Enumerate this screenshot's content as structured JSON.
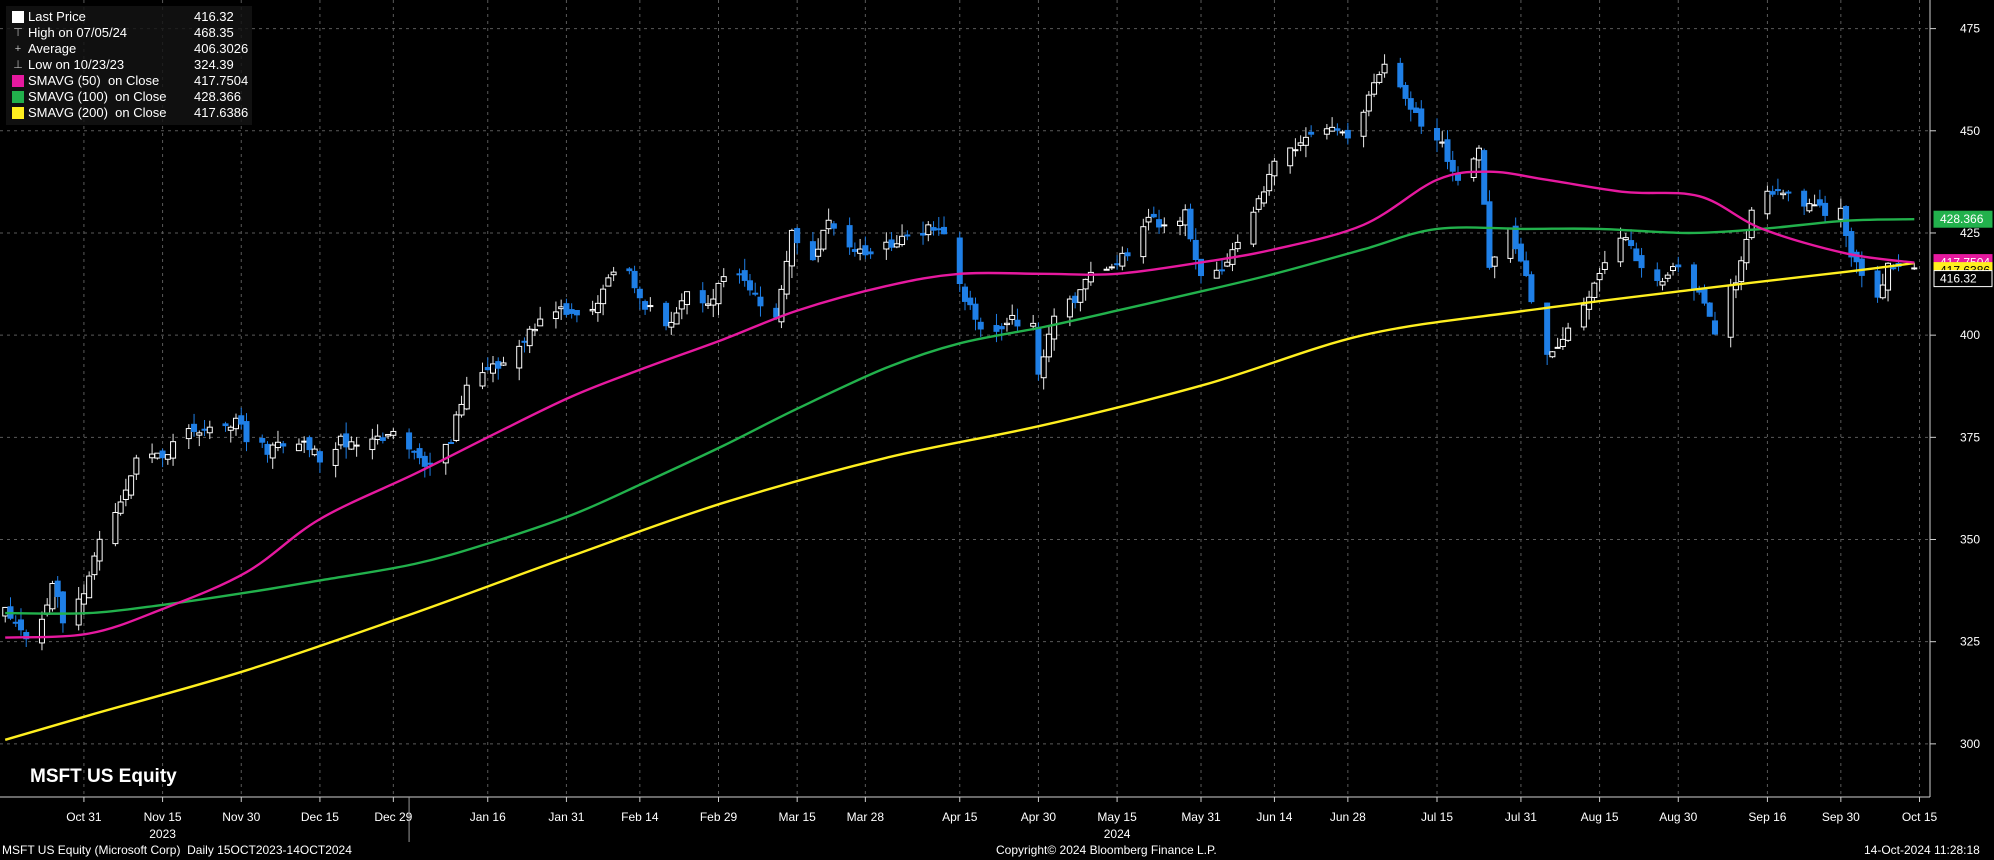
{
  "legend": {
    "items": [
      {
        "name": "Last Price",
        "value": "416.32",
        "marker": "square",
        "color": "#ffffff"
      },
      {
        "name": "High on 07/05/24",
        "value": "468.35",
        "marker": "tee-up"
      },
      {
        "name": "Average",
        "value": "406.3026",
        "marker": "plus"
      },
      {
        "name": "Low on 10/23/23",
        "value": "324.39",
        "marker": "tee-down"
      },
      {
        "name": "SMAVG (50)  on Close",
        "value": "417.7504",
        "marker": "square",
        "color": "#e6199f"
      },
      {
        "name": "SMAVG (100)  on Close",
        "value": "428.366",
        "marker": "square",
        "color": "#22b14c"
      },
      {
        "name": "SMAVG (200)  on Close",
        "value": "417.6386",
        "marker": "square",
        "color": "#ffef1f"
      }
    ]
  },
  "chart_label": "MSFT US Equity",
  "footer": {
    "left": "MSFT US Equity (Microsoft Corp)  Daily 15OCT2023-14OCT2024",
    "center": "Copyright© 2024 Bloomberg Finance L.P.",
    "right": "14-Oct-2024 11:28:18"
  },
  "colors": {
    "background": "#000000",
    "grid": "#5a5a5a",
    "up_candle": "#ffffff",
    "down_candle": "#1f7fe6",
    "sma50": "#e6199f",
    "sma100": "#22b14c",
    "sma200": "#ffef1f"
  },
  "chart_data": {
    "type": "candlestick",
    "ylim": [
      287,
      482
    ],
    "yticks": [
      300,
      325,
      350,
      375,
      400,
      425,
      450,
      475
    ],
    "xlim": [
      "2023-10-15",
      "2024-10-17"
    ],
    "xticks": [
      {
        "date": "2023-10-31",
        "label": "Oct 31"
      },
      {
        "date": "2023-11-15",
        "label": "Nov 15"
      },
      {
        "date": "2023-11-30",
        "label": "Nov 30"
      },
      {
        "date": "2023-12-15",
        "label": "Dec 15"
      },
      {
        "date": "2023-12-29",
        "label": "Dec 29"
      },
      {
        "date": "2024-01-16",
        "label": "Jan 16"
      },
      {
        "date": "2024-01-31",
        "label": "Jan 31"
      },
      {
        "date": "2024-02-14",
        "label": "Feb 14"
      },
      {
        "date": "2024-02-29",
        "label": "Feb 29"
      },
      {
        "date": "2024-03-15",
        "label": "Mar 15"
      },
      {
        "date": "2024-03-28",
        "label": "Mar 28"
      },
      {
        "date": "2024-04-15",
        "label": "Apr 15"
      },
      {
        "date": "2024-04-30",
        "label": "Apr 30"
      },
      {
        "date": "2024-05-15",
        "label": "May 15"
      },
      {
        "date": "2024-05-31",
        "label": "May 31"
      },
      {
        "date": "2024-06-14",
        "label": "Jun 14"
      },
      {
        "date": "2024-06-28",
        "label": "Jun 28"
      },
      {
        "date": "2024-07-15",
        "label": "Jul 15"
      },
      {
        "date": "2024-07-31",
        "label": "Jul 31"
      },
      {
        "date": "2024-08-15",
        "label": "Aug 15"
      },
      {
        "date": "2024-08-30",
        "label": "Aug 30"
      },
      {
        "date": "2024-09-16",
        "label": "Sep 16"
      },
      {
        "date": "2024-09-30",
        "label": "Sep 30"
      },
      {
        "date": "2024-10-15",
        "label": "Oct 15"
      }
    ],
    "year_labels": [
      {
        "date": "2023-11-15",
        "label": "2023"
      },
      {
        "date": "2024-05-15",
        "label": "2024"
      }
    ],
    "price_path": [
      [
        "2023-10-16",
        332
      ],
      [
        "2023-10-20",
        326
      ],
      [
        "2023-10-23",
        329
      ],
      [
        "2023-10-25",
        340
      ],
      [
        "2023-10-27",
        330
      ],
      [
        "2023-10-31",
        338
      ],
      [
        "2023-11-03",
        350
      ],
      [
        "2023-11-07",
        359
      ],
      [
        "2023-11-10",
        369
      ],
      [
        "2023-11-15",
        370
      ],
      [
        "2023-11-20",
        377
      ],
      [
        "2023-11-24",
        378
      ],
      [
        "2023-11-29",
        379
      ],
      [
        "2023-12-01",
        375
      ],
      [
        "2023-12-05",
        372
      ],
      [
        "2023-12-08",
        374
      ],
      [
        "2023-12-12",
        374
      ],
      [
        "2023-12-15",
        370
      ],
      [
        "2023-12-19",
        374
      ],
      [
        "2023-12-22",
        374
      ],
      [
        "2023-12-27",
        375
      ],
      [
        "2023-12-29",
        376
      ],
      [
        "2024-01-03",
        370
      ],
      [
        "2024-01-05",
        367
      ],
      [
        "2024-01-09",
        375
      ],
      [
        "2024-01-12",
        388
      ],
      [
        "2024-01-18",
        393
      ],
      [
        "2024-01-22",
        397
      ],
      [
        "2024-01-26",
        404
      ],
      [
        "2024-01-30",
        408
      ],
      [
        "2024-02-01",
        404
      ],
      [
        "2024-02-05",
        405
      ],
      [
        "2024-02-08",
        415
      ],
      [
        "2024-02-12",
        415
      ],
      [
        "2024-02-14",
        409
      ],
      [
        "2024-02-20",
        402
      ],
      [
        "2024-02-23",
        410
      ],
      [
        "2024-02-27",
        407
      ],
      [
        "2024-02-29",
        413
      ],
      [
        "2024-03-04",
        415
      ],
      [
        "2024-03-07",
        409
      ],
      [
        "2024-03-11",
        405
      ],
      [
        "2024-03-14",
        425
      ],
      [
        "2024-03-18",
        418
      ],
      [
        "2024-03-21",
        429
      ],
      [
        "2024-03-25",
        422
      ],
      [
        "2024-03-28",
        421
      ],
      [
        "2024-04-02",
        422
      ],
      [
        "2024-04-05",
        425
      ],
      [
        "2024-04-09",
        426
      ],
      [
        "2024-04-11",
        427
      ],
      [
        "2024-04-15",
        413
      ],
      [
        "2024-04-18",
        403
      ],
      [
        "2024-04-22",
        400
      ],
      [
        "2024-04-25",
        404
      ],
      [
        "2024-04-29",
        402
      ],
      [
        "2024-04-30",
        389
      ],
      [
        "2024-05-03",
        406
      ],
      [
        "2024-05-07",
        409
      ],
      [
        "2024-05-10",
        415
      ],
      [
        "2024-05-14",
        416
      ],
      [
        "2024-05-17",
        420
      ],
      [
        "2024-05-21",
        430
      ],
      [
        "2024-05-23",
        426
      ],
      [
        "2024-05-28",
        430
      ],
      [
        "2024-05-31",
        415
      ],
      [
        "2024-06-04",
        416
      ],
      [
        "2024-06-07",
        423
      ],
      [
        "2024-06-11",
        432
      ],
      [
        "2024-06-14",
        443
      ],
      [
        "2024-06-18",
        446
      ],
      [
        "2024-06-21",
        449
      ],
      [
        "2024-06-25",
        451
      ],
      [
        "2024-06-28",
        447
      ],
      [
        "2024-07-02",
        459
      ],
      [
        "2024-07-05",
        467
      ],
      [
        "2024-07-09",
        459
      ],
      [
        "2024-07-11",
        453
      ],
      [
        "2024-07-15",
        449
      ],
      [
        "2024-07-17",
        443
      ],
      [
        "2024-07-19",
        437
      ],
      [
        "2024-07-23",
        445
      ],
      [
        "2024-07-25",
        418
      ],
      [
        "2024-07-29",
        426
      ],
      [
        "2024-07-31",
        418
      ],
      [
        "2024-08-05",
        395
      ],
      [
        "2024-08-07",
        398
      ],
      [
        "2024-08-12",
        406
      ],
      [
        "2024-08-16",
        418
      ],
      [
        "2024-08-20",
        424
      ],
      [
        "2024-08-23",
        416
      ],
      [
        "2024-08-27",
        413
      ],
      [
        "2024-08-30",
        417
      ],
      [
        "2024-09-04",
        408
      ],
      [
        "2024-09-06",
        401
      ],
      [
        "2024-09-10",
        414
      ],
      [
        "2024-09-13",
        430
      ],
      [
        "2024-09-17",
        435
      ],
      [
        "2024-09-19",
        436
      ],
      [
        "2024-09-23",
        433
      ],
      [
        "2024-09-26",
        431
      ],
      [
        "2024-09-30",
        430
      ],
      [
        "2024-10-02",
        420
      ],
      [
        "2024-10-04",
        416
      ],
      [
        "2024-10-07",
        409
      ],
      [
        "2024-10-09",
        417
      ],
      [
        "2024-10-11",
        416
      ],
      [
        "2024-10-14",
        416.32
      ]
    ],
    "sma50": [
      [
        "2023-10-16",
        326
      ],
      [
        "2023-11-01",
        327
      ],
      [
        "2023-11-15",
        333
      ],
      [
        "2023-12-01",
        342
      ],
      [
        "2023-12-15",
        355
      ],
      [
        "2024-01-02",
        366
      ],
      [
        "2024-01-16",
        375
      ],
      [
        "2024-02-01",
        385
      ],
      [
        "2024-02-15",
        392
      ],
      [
        "2024-03-01",
        399
      ],
      [
        "2024-03-15",
        406
      ],
      [
        "2024-04-01",
        412
      ],
      [
        "2024-04-15",
        415
      ],
      [
        "2024-05-01",
        415
      ],
      [
        "2024-05-15",
        415
      ],
      [
        "2024-06-01",
        418
      ],
      [
        "2024-06-14",
        421
      ],
      [
        "2024-07-01",
        427
      ],
      [
        "2024-07-15",
        438
      ],
      [
        "2024-07-25",
        440
      ],
      [
        "2024-08-05",
        438
      ],
      [
        "2024-08-20",
        435
      ],
      [
        "2024-09-03",
        434
      ],
      [
        "2024-09-15",
        426
      ],
      [
        "2024-10-01",
        420
      ],
      [
        "2024-10-14",
        417.75
      ]
    ],
    "sma100": [
      [
        "2023-10-16",
        332
      ],
      [
        "2023-11-01",
        332
      ],
      [
        "2023-11-15",
        334
      ],
      [
        "2023-12-01",
        337
      ],
      [
        "2023-12-15",
        340
      ],
      [
        "2024-01-02",
        344
      ],
      [
        "2024-01-16",
        349
      ],
      [
        "2024-02-01",
        356
      ],
      [
        "2024-02-15",
        364
      ],
      [
        "2024-03-01",
        373
      ],
      [
        "2024-03-15",
        382
      ],
      [
        "2024-04-01",
        392
      ],
      [
        "2024-04-15",
        398
      ],
      [
        "2024-05-01",
        402
      ],
      [
        "2024-05-15",
        406
      ],
      [
        "2024-06-01",
        411
      ],
      [
        "2024-06-14",
        415
      ],
      [
        "2024-07-01",
        421
      ],
      [
        "2024-07-15",
        426
      ],
      [
        "2024-08-01",
        426
      ],
      [
        "2024-08-15",
        426
      ],
      [
        "2024-09-01",
        425
      ],
      [
        "2024-09-15",
        426
      ],
      [
        "2024-10-01",
        428
      ],
      [
        "2024-10-14",
        428.37
      ]
    ],
    "sma200": [
      [
        "2023-10-16",
        301
      ],
      [
        "2023-11-01",
        307
      ],
      [
        "2023-12-01",
        318
      ],
      [
        "2024-01-02",
        332
      ],
      [
        "2024-02-01",
        346
      ],
      [
        "2024-03-01",
        359
      ],
      [
        "2024-04-01",
        370
      ],
      [
        "2024-05-01",
        378
      ],
      [
        "2024-06-01",
        388
      ],
      [
        "2024-07-01",
        400
      ],
      [
        "2024-08-01",
        406
      ],
      [
        "2024-09-01",
        411
      ],
      [
        "2024-10-01",
        415.5
      ],
      [
        "2024-10-14",
        417.64
      ]
    ],
    "price_tags": [
      {
        "value": "428.366",
        "price": 428.366,
        "color": "#22b14c",
        "text_color": "#ffffff"
      },
      {
        "value": "417.7504",
        "price": 417.75,
        "color": "#e6199f",
        "text_color": "#ffffff"
      },
      {
        "value": "417.6386",
        "price": 417.64,
        "color": "#ffef1f",
        "text_color": "#000000"
      },
      {
        "value": "416.32",
        "price": 416.32,
        "color": "#000000",
        "text_color": "#ffffff",
        "border": "#ffffff"
      }
    ]
  }
}
